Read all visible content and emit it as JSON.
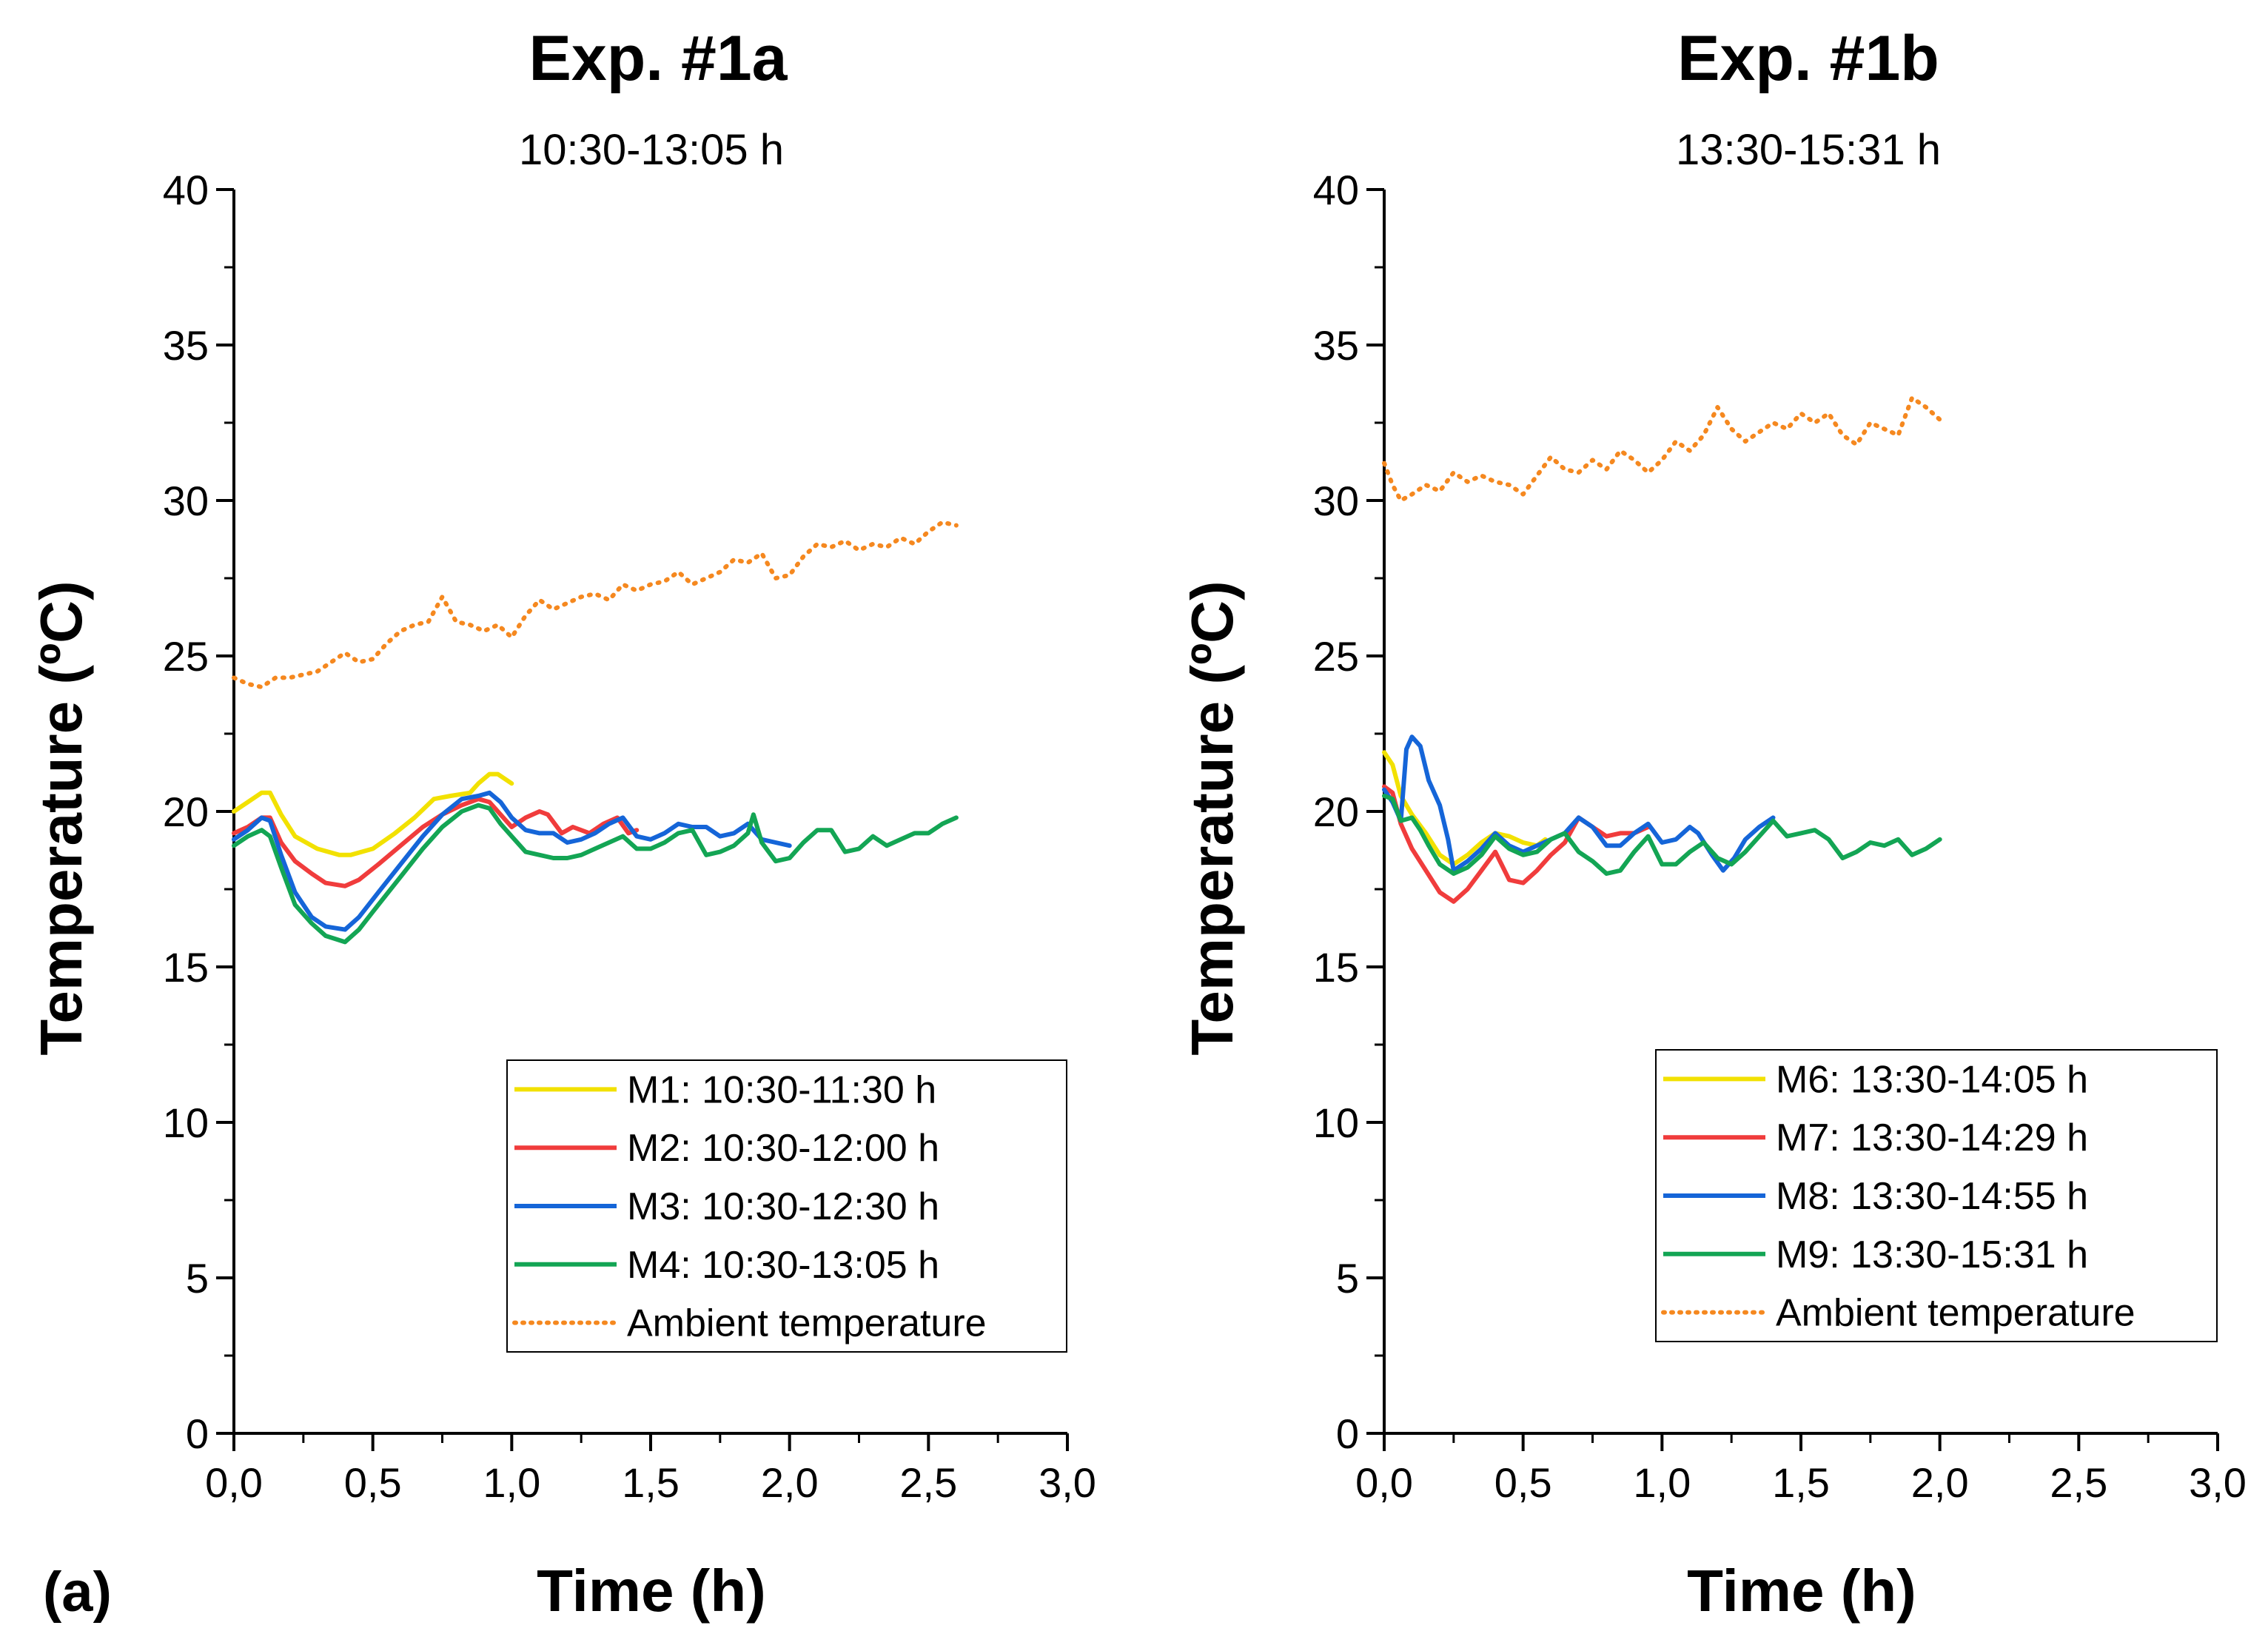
{
  "panel_label": "(a)",
  "chart_data": [
    {
      "type": "line",
      "title": "Exp. #1a",
      "subtitle": "10:30-13:05 h",
      "xlabel": "Time (h)",
      "ylabel": "Temperature (ºC)",
      "xlim": [
        0,
        3
      ],
      "ylim": [
        0,
        40
      ],
      "xticks": [
        0,
        0.5,
        1,
        1.5,
        2,
        2.5,
        3
      ],
      "xtick_labels": [
        "0,0",
        "0,5",
        "1,0",
        "1,5",
        "2,0",
        "2,5",
        "3,0"
      ],
      "yticks": [
        0,
        5,
        10,
        15,
        20,
        25,
        30,
        35,
        40
      ],
      "ytick_labels": [
        "0",
        "5",
        "10",
        "15",
        "20",
        "25",
        "30",
        "35",
        "40"
      ],
      "legend_position": "bottom-right",
      "series": [
        {
          "name": "M1: 10:30-11:30 h",
          "color": "#f2e100",
          "style": "solid",
          "x": [
            0,
            0.05,
            0.1,
            0.13,
            0.17,
            0.22,
            0.3,
            0.38,
            0.42,
            0.5,
            0.58,
            0.65,
            0.72,
            0.78,
            0.85,
            0.88,
            0.92,
            0.95,
            1.0
          ],
          "y": [
            20.0,
            20.3,
            20.6,
            20.6,
            19.9,
            19.2,
            18.8,
            18.6,
            18.6,
            18.8,
            19.3,
            19.8,
            20.4,
            20.5,
            20.6,
            20.9,
            21.2,
            21.2,
            20.9
          ]
        },
        {
          "name": "M2: 10:30-12:00 h",
          "color": "#f03c3c",
          "style": "solid",
          "x": [
            0,
            0.05,
            0.1,
            0.13,
            0.17,
            0.22,
            0.28,
            0.33,
            0.4,
            0.45,
            0.52,
            0.6,
            0.68,
            0.75,
            0.82,
            0.88,
            0.92,
            0.96,
            1.0,
            1.05,
            1.1,
            1.13,
            1.18,
            1.22,
            1.28,
            1.33,
            1.38,
            1.42,
            1.45
          ],
          "y": [
            19.3,
            19.5,
            19.8,
            19.8,
            19.0,
            18.4,
            18.0,
            17.7,
            17.6,
            17.8,
            18.3,
            18.9,
            19.5,
            19.9,
            20.2,
            20.4,
            20.3,
            19.9,
            19.5,
            19.8,
            20.0,
            19.9,
            19.3,
            19.5,
            19.3,
            19.6,
            19.8,
            19.3,
            19.4
          ]
        },
        {
          "name": "M3: 10:30-12:30 h",
          "color": "#1565d8",
          "style": "solid",
          "x": [
            0,
            0.05,
            0.1,
            0.13,
            0.17,
            0.22,
            0.28,
            0.33,
            0.4,
            0.45,
            0.52,
            0.6,
            0.68,
            0.75,
            0.82,
            0.88,
            0.92,
            0.96,
            1.0,
            1.05,
            1.1,
            1.15,
            1.2,
            1.25,
            1.3,
            1.35,
            1.4,
            1.45,
            1.5,
            1.55,
            1.6,
            1.65,
            1.7,
            1.75,
            1.8,
            1.85,
            1.9,
            1.95,
            2.0
          ],
          "y": [
            19.1,
            19.4,
            19.8,
            19.7,
            18.6,
            17.4,
            16.6,
            16.3,
            16.2,
            16.6,
            17.4,
            18.3,
            19.2,
            19.9,
            20.4,
            20.5,
            20.6,
            20.3,
            19.8,
            19.4,
            19.3,
            19.3,
            19.0,
            19.1,
            19.3,
            19.6,
            19.8,
            19.2,
            19.1,
            19.3,
            19.6,
            19.5,
            19.5,
            19.2,
            19.3,
            19.6,
            19.1,
            19.0,
            18.9
          ]
        },
        {
          "name": "M4: 10:30-13:05 h",
          "color": "#13a554",
          "style": "solid",
          "x": [
            0,
            0.05,
            0.1,
            0.13,
            0.17,
            0.22,
            0.28,
            0.33,
            0.4,
            0.45,
            0.52,
            0.6,
            0.68,
            0.75,
            0.82,
            0.88,
            0.92,
            0.96,
            1.0,
            1.05,
            1.1,
            1.15,
            1.2,
            1.25,
            1.3,
            1.35,
            1.4,
            1.45,
            1.5,
            1.55,
            1.6,
            1.65,
            1.7,
            1.75,
            1.8,
            1.85,
            1.87,
            1.9,
            1.95,
            2.0,
            2.05,
            2.1,
            2.15,
            2.2,
            2.25,
            2.3,
            2.35,
            2.4,
            2.45,
            2.5,
            2.55,
            2.6
          ],
          "y": [
            18.9,
            19.2,
            19.4,
            19.2,
            18.2,
            17.0,
            16.4,
            16.0,
            15.8,
            16.2,
            17.0,
            17.9,
            18.8,
            19.5,
            20.0,
            20.2,
            20.1,
            19.6,
            19.2,
            18.7,
            18.6,
            18.5,
            18.5,
            18.6,
            18.8,
            19.0,
            19.2,
            18.8,
            18.8,
            19.0,
            19.3,
            19.4,
            18.6,
            18.7,
            18.9,
            19.3,
            19.9,
            19.0,
            18.4,
            18.5,
            19.0,
            19.4,
            19.4,
            18.7,
            18.8,
            19.2,
            18.9,
            19.1,
            19.3,
            19.3,
            19.6,
            19.8
          ]
        },
        {
          "name": "Ambient temperature",
          "color": "#f5881f",
          "style": "dotted",
          "x": [
            0,
            0.05,
            0.1,
            0.15,
            0.2,
            0.25,
            0.3,
            0.35,
            0.4,
            0.45,
            0.5,
            0.55,
            0.6,
            0.65,
            0.7,
            0.75,
            0.8,
            0.85,
            0.9,
            0.95,
            1.0,
            1.05,
            1.1,
            1.15,
            1.2,
            1.25,
            1.3,
            1.35,
            1.4,
            1.45,
            1.5,
            1.55,
            1.6,
            1.65,
            1.7,
            1.75,
            1.8,
            1.85,
            1.9,
            1.95,
            2.0,
            2.05,
            2.1,
            2.15,
            2.2,
            2.25,
            2.3,
            2.35,
            2.4,
            2.45,
            2.5,
            2.55,
            2.6
          ],
          "y": [
            24.3,
            24.1,
            24.0,
            24.3,
            24.3,
            24.4,
            24.5,
            24.8,
            25.1,
            24.8,
            24.9,
            25.4,
            25.8,
            26.0,
            26.1,
            26.9,
            26.1,
            26.0,
            25.8,
            26.0,
            25.6,
            26.3,
            26.8,
            26.5,
            26.7,
            26.9,
            27.0,
            26.8,
            27.3,
            27.1,
            27.3,
            27.4,
            27.7,
            27.3,
            27.5,
            27.7,
            28.1,
            28.0,
            28.3,
            27.5,
            27.6,
            28.2,
            28.6,
            28.5,
            28.7,
            28.4,
            28.6,
            28.5,
            28.8,
            28.6,
            29.0,
            29.3,
            29.2
          ]
        }
      ]
    },
    {
      "type": "line",
      "title": "Exp. #1b",
      "subtitle": "13:30-15:31 h",
      "xlabel": "Time (h)",
      "ylabel": "Temperature (ºC)",
      "xlim": [
        0,
        3
      ],
      "ylim": [
        0,
        40
      ],
      "xticks": [
        0,
        0.5,
        1,
        1.5,
        2,
        2.5,
        3
      ],
      "xtick_labels": [
        "0,0",
        "0,5",
        "1,0",
        "1,5",
        "2,0",
        "2,5",
        "3,0"
      ],
      "yticks": [
        0,
        5,
        10,
        15,
        20,
        25,
        30,
        35,
        40
      ],
      "ytick_labels": [
        "0",
        "5",
        "10",
        "15",
        "20",
        "25",
        "30",
        "35",
        "40"
      ],
      "legend_position": "bottom-right",
      "series": [
        {
          "name": "M6: 13:30-14:05 h",
          "color": "#f2e100",
          "style": "solid",
          "x": [
            0,
            0.03,
            0.06,
            0.1,
            0.15,
            0.2,
            0.25,
            0.3,
            0.35,
            0.4,
            0.45,
            0.5,
            0.55,
            0.58
          ],
          "y": [
            21.9,
            21.5,
            20.5,
            19.9,
            19.3,
            18.6,
            18.3,
            18.6,
            19.0,
            19.3,
            19.2,
            19.0,
            18.9,
            19.1
          ]
        },
        {
          "name": "M7: 13:30-14:29 h",
          "color": "#f03c3c",
          "style": "solid",
          "x": [
            0,
            0.03,
            0.06,
            0.1,
            0.15,
            0.2,
            0.25,
            0.3,
            0.35,
            0.4,
            0.45,
            0.5,
            0.55,
            0.6,
            0.65,
            0.7,
            0.75,
            0.8,
            0.85,
            0.9,
            0.95
          ],
          "y": [
            20.8,
            20.6,
            19.6,
            18.8,
            18.1,
            17.4,
            17.1,
            17.5,
            18.1,
            18.7,
            17.8,
            17.7,
            18.1,
            18.6,
            19.0,
            19.8,
            19.5,
            19.2,
            19.3,
            19.3,
            19.5
          ]
        },
        {
          "name": "M8: 13:30-14:55 h",
          "color": "#1565d8",
          "style": "solid",
          "x": [
            0,
            0.03,
            0.06,
            0.08,
            0.1,
            0.13,
            0.16,
            0.2,
            0.23,
            0.25,
            0.3,
            0.35,
            0.4,
            0.45,
            0.5,
            0.55,
            0.6,
            0.65,
            0.7,
            0.75,
            0.8,
            0.85,
            0.9,
            0.95,
            1.0,
            1.05,
            1.1,
            1.13,
            1.18,
            1.22,
            1.26,
            1.3,
            1.35,
            1.4
          ],
          "y": [
            20.7,
            20.3,
            19.7,
            22.0,
            22.4,
            22.1,
            21.0,
            20.2,
            19.1,
            18.1,
            18.4,
            18.8,
            19.3,
            18.9,
            18.7,
            18.9,
            19.1,
            19.3,
            19.8,
            19.5,
            18.9,
            18.9,
            19.3,
            19.6,
            19.0,
            19.1,
            19.5,
            19.3,
            18.6,
            18.1,
            18.5,
            19.1,
            19.5,
            19.8
          ]
        },
        {
          "name": "M9: 13:30-15:31 h",
          "color": "#13a554",
          "style": "solid",
          "x": [
            0,
            0.03,
            0.06,
            0.1,
            0.13,
            0.16,
            0.2,
            0.25,
            0.3,
            0.35,
            0.4,
            0.45,
            0.5,
            0.55,
            0.6,
            0.65,
            0.7,
            0.75,
            0.8,
            0.85,
            0.9,
            0.95,
            1.0,
            1.05,
            1.1,
            1.15,
            1.2,
            1.25,
            1.3,
            1.35,
            1.4,
            1.45,
            1.5,
            1.55,
            1.6,
            1.65,
            1.7,
            1.75,
            1.8,
            1.85,
            1.9,
            1.95,
            2.0
          ],
          "y": [
            20.5,
            20.4,
            19.7,
            19.8,
            19.4,
            18.9,
            18.3,
            18.0,
            18.2,
            18.6,
            19.2,
            18.8,
            18.6,
            18.7,
            19.1,
            19.3,
            18.7,
            18.4,
            18.0,
            18.1,
            18.7,
            19.2,
            18.3,
            18.3,
            18.7,
            19.0,
            18.5,
            18.3,
            18.7,
            19.2,
            19.7,
            19.2,
            19.3,
            19.4,
            19.1,
            18.5,
            18.7,
            19.0,
            18.9,
            19.1,
            18.6,
            18.8,
            19.1
          ]
        },
        {
          "name": "Ambient temperature",
          "color": "#f5881f",
          "style": "dotted",
          "x": [
            0,
            0.03,
            0.06,
            0.1,
            0.15,
            0.2,
            0.25,
            0.3,
            0.35,
            0.4,
            0.45,
            0.5,
            0.55,
            0.6,
            0.65,
            0.7,
            0.75,
            0.8,
            0.85,
            0.9,
            0.95,
            1.0,
            1.05,
            1.1,
            1.15,
            1.2,
            1.25,
            1.3,
            1.35,
            1.4,
            1.45,
            1.5,
            1.55,
            1.6,
            1.65,
            1.7,
            1.75,
            1.8,
            1.85,
            1.9,
            1.95,
            2.0
          ],
          "y": [
            31.2,
            30.5,
            30.0,
            30.2,
            30.5,
            30.3,
            30.9,
            30.6,
            30.8,
            30.6,
            30.5,
            30.2,
            30.8,
            31.4,
            31.0,
            30.9,
            31.3,
            31.0,
            31.6,
            31.3,
            30.9,
            31.3,
            31.9,
            31.6,
            32.1,
            33.0,
            32.3,
            31.9,
            32.2,
            32.5,
            32.3,
            32.8,
            32.5,
            32.8,
            32.1,
            31.8,
            32.5,
            32.3,
            32.1,
            33.3,
            33.0,
            32.6
          ]
        }
      ]
    }
  ]
}
